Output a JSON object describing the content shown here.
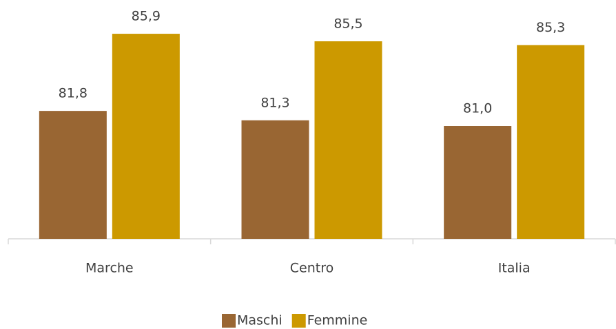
{
  "chart_data": {
    "type": "bar",
    "categories": [
      "Marche",
      "Centro",
      "Italia"
    ],
    "series": [
      {
        "name": "Maschi",
        "color": "#996633",
        "values": [
          81.8,
          81.3,
          81.0
        ],
        "value_labels": [
          "81,8",
          "81,3",
          "81,0"
        ]
      },
      {
        "name": "Femmine",
        "color": "#cc9900",
        "values": [
          85.9,
          85.5,
          85.3
        ],
        "value_labels": [
          "85,9",
          "85,5",
          "85,3"
        ]
      }
    ],
    "ylim": [
      75,
      87
    ],
    "legend": "bottom"
  }
}
